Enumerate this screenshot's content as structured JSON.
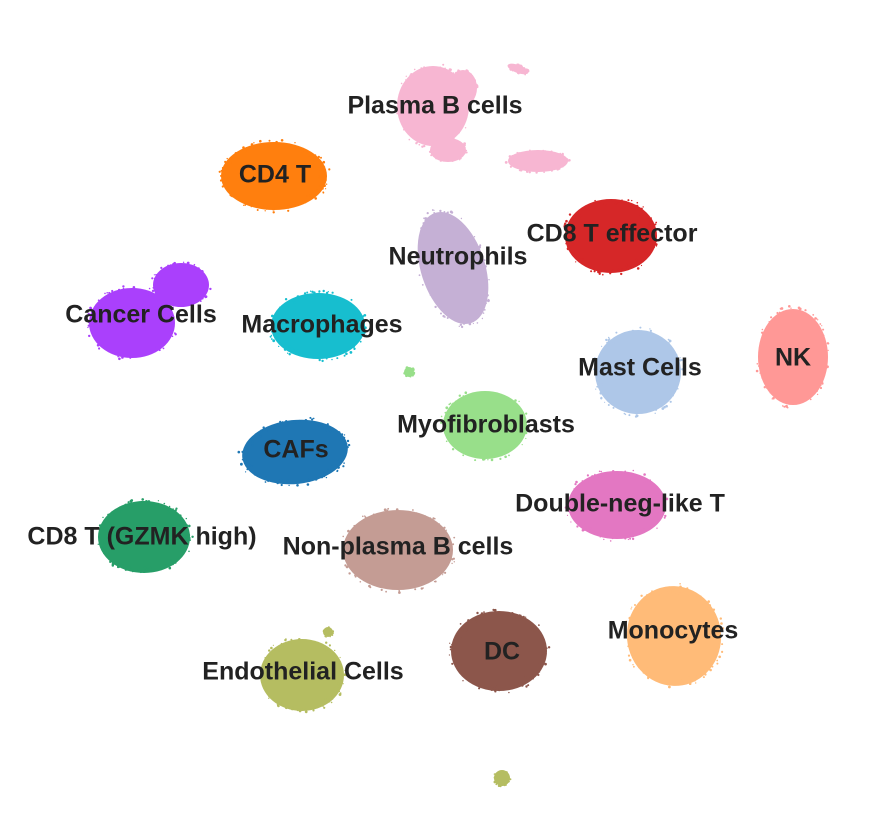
{
  "chart_data": {
    "type": "scatter",
    "title": "",
    "xlabel": "",
    "ylabel": "",
    "grid": false,
    "axes_visible": false,
    "legend": "on-data labels",
    "clusters": [
      {
        "name": "Plasma B cells",
        "color": "#f7b6d2"
      },
      {
        "name": "CD4 T",
        "color": "#ff7f0e"
      },
      {
        "name": "CD8 T effector",
        "color": "#d62728"
      },
      {
        "name": "Neutrophils",
        "color": "#c5b0d5"
      },
      {
        "name": "Cancer Cells",
        "color": "#aa40fc"
      },
      {
        "name": "Macrophages",
        "color": "#17becf"
      },
      {
        "name": "NK",
        "color": "#ff9896"
      },
      {
        "name": "Mast Cells",
        "color": "#aec7e8"
      },
      {
        "name": "Myofibroblasts",
        "color": "#98df8a"
      },
      {
        "name": "CAFs",
        "color": "#1f77b4"
      },
      {
        "name": "Double-neg-like T",
        "color": "#e377c2"
      },
      {
        "name": "CD8 T (GZMK high)",
        "color": "#279e68"
      },
      {
        "name": "Non-plasma B cells",
        "color": "#c49c94"
      },
      {
        "name": "Monocytes",
        "color": "#ffbb78"
      },
      {
        "name": "DC",
        "color": "#8c564b"
      },
      {
        "name": "Endothelial Cells",
        "color": "#b5bd61"
      }
    ]
  }
}
